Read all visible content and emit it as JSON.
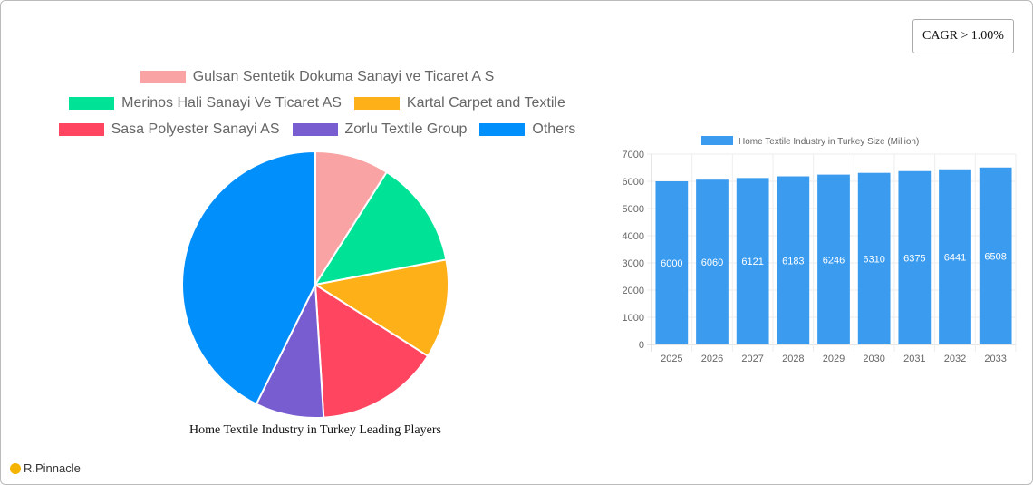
{
  "cagr_label": "CAGR > 1.00%",
  "brand": "R.Pinnacle",
  "chart_data": [
    {
      "type": "pie",
      "title": "Home Textile Industry in Turkey Leading Players",
      "legend_position": "top",
      "categories": [
        "Gulsan Sentetik Dokuma Sanayi ve Ticaret A S",
        "Merinos Hali Sanayi Ve Ticaret AS",
        "Kartal Carpet and Textile",
        "Sasa Polyester Sanayi AS",
        "Zorlu Textile Group",
        "Others"
      ],
      "values": [
        9,
        13,
        12,
        15,
        8.3,
        42.7
      ],
      "colors": [
        "#f9a3a4",
        "#00e396",
        "#feb019",
        "#ff4560",
        "#775dd0",
        "#008ffb"
      ]
    },
    {
      "type": "bar",
      "title": "",
      "legend_position": "top",
      "series": [
        {
          "name": "Home Textile Industry in Turkey Size (Million)",
          "values": [
            6000,
            6060,
            6121,
            6183,
            6246,
            6310,
            6375,
            6441,
            6508
          ]
        }
      ],
      "categories": [
        "2025",
        "2026",
        "2027",
        "2028",
        "2029",
        "2030",
        "2031",
        "2032",
        "2033"
      ],
      "ylim": [
        0,
        7000
      ],
      "yticks": [
        "0",
        "1000",
        "2000",
        "3000",
        "4000",
        "5000",
        "6000",
        "7000"
      ],
      "grid": true,
      "color": "#3a9bef"
    }
  ]
}
